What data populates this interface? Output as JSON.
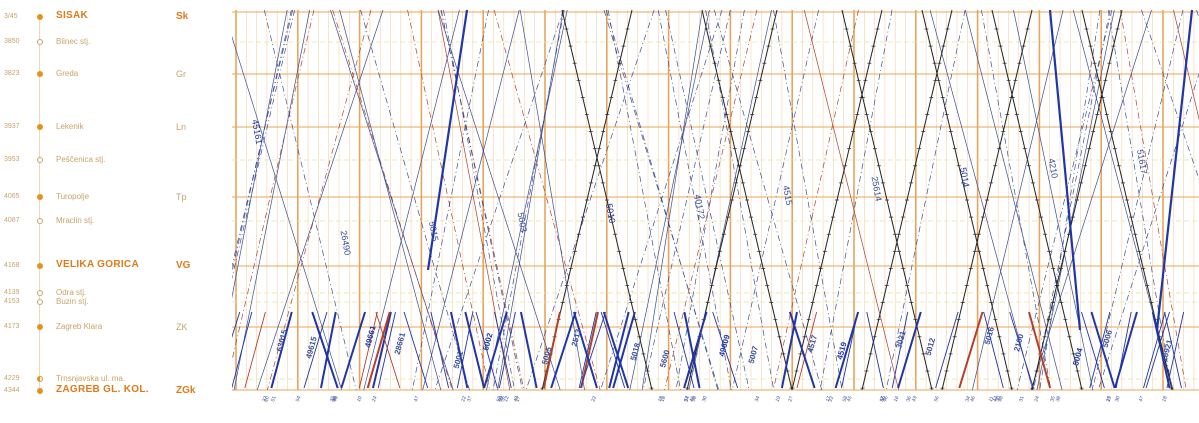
{
  "stations": [
    {
      "km": "3/45",
      "name": "SISAK",
      "code": "Sk",
      "kind": "major"
    },
    {
      "km": "3850",
      "name": "Blinec stj.",
      "code": "",
      "kind": "minor"
    },
    {
      "km": "3823",
      "name": "Greda",
      "code": "Gr",
      "kind": "station"
    },
    {
      "km": "3937",
      "name": "Lekenik",
      "code": "Ln",
      "kind": "station"
    },
    {
      "km": "3953",
      "name": "Peščenica stj.",
      "code": "",
      "kind": "minor"
    },
    {
      "km": "4065",
      "name": "Turopolje",
      "code": "Tp",
      "kind": "station"
    },
    {
      "km": "4087",
      "name": "Mraclin stj.",
      "code": "",
      "kind": "minor"
    },
    {
      "km": "4168",
      "name": "VELIKA GORICA",
      "code": "VG",
      "kind": "major"
    },
    {
      "km": "4139",
      "name": "Odra stj.",
      "code": "",
      "kind": "minor"
    },
    {
      "km": "4153",
      "name": "Buzin stj.",
      "code": "",
      "kind": "minor"
    },
    {
      "km": "4173",
      "name": "Zagreb Klara",
      "code": "ZK",
      "kind": "station"
    },
    {
      "km": "4229",
      "name": "Trnsnjavska ul. ma.",
      "code": "",
      "kind": "half"
    },
    {
      "km": "4344",
      "name": "ZAGREB GL. KOL.",
      "code": "ZGk",
      "kind": "major"
    }
  ],
  "colors": {
    "grid_main": "#e8a55a",
    "grid_minor": "#f3d3a8",
    "grid_dash": "#e9e2a0",
    "train_blue": "#1f35a8",
    "train_black": "#222222",
    "train_red": "#b2402c"
  },
  "train_labels": [
    "45161",
    "63015",
    "49615",
    "26490",
    "49661",
    "28661",
    "5015",
    "5001",
    "5002",
    "5003",
    "5005",
    "2513",
    "5010",
    "5018",
    "5600",
    "40172",
    "49609",
    "5007",
    "4515",
    "4517",
    "4519",
    "25614",
    "3021",
    "5012",
    "5014",
    "5016",
    "2100",
    "4210",
    "5004",
    "5006",
    "51617",
    "16921"
  ]
}
